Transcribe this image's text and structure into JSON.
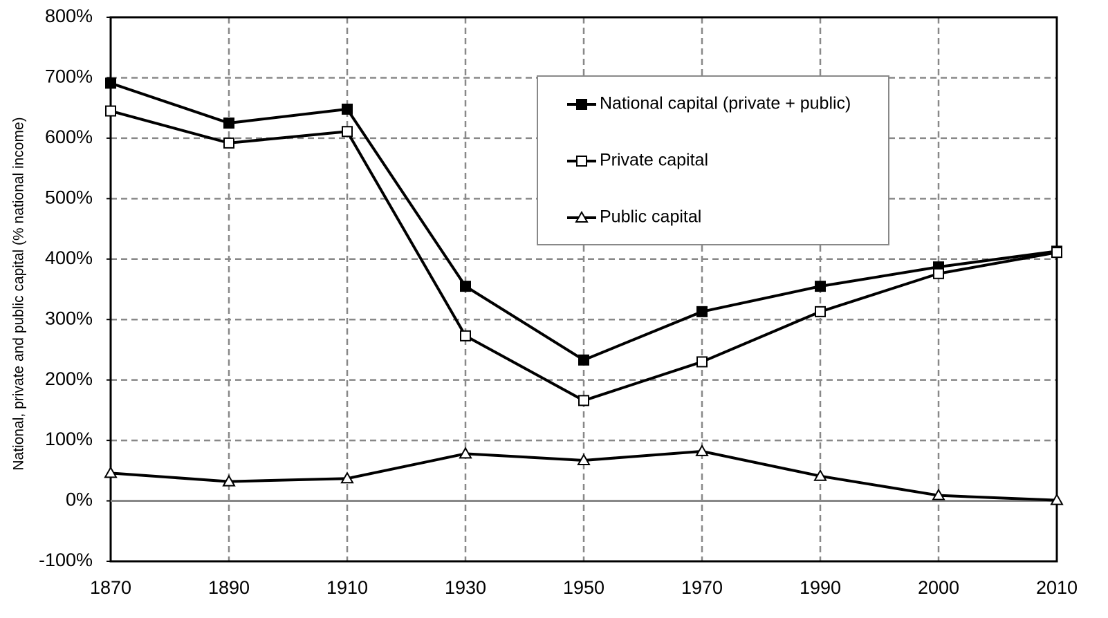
{
  "chart_data": {
    "type": "line",
    "y_axis_label": "National, private and public capital (% national income)",
    "categories": [
      "1870",
      "1890",
      "1910",
      "1930",
      "1950",
      "1970",
      "1990",
      "2000",
      "2010"
    ],
    "series": [
      {
        "name": "National capital (private + public)",
        "color": "#000000",
        "marker": "filled-square",
        "values": [
          691,
          625,
          648,
          355,
          233,
          313,
          355,
          387,
          413
        ]
      },
      {
        "name": "Private capital",
        "color": "#000000",
        "marker": "open-square",
        "values": [
          645,
          592,
          611,
          273,
          166,
          230,
          313,
          376,
          411
        ]
      },
      {
        "name": "Public capital",
        "color": "#000000",
        "marker": "open-triangle",
        "values": [
          46,
          32,
          37,
          78,
          67,
          82,
          41,
          9,
          1
        ]
      }
    ],
    "ylim": [
      -100,
      800
    ],
    "yticks": [
      {
        "value": -100,
        "label": "-100%"
      },
      {
        "value": 0,
        "label": "0%"
      },
      {
        "value": 100,
        "label": "100%"
      },
      {
        "value": 200,
        "label": "200%"
      },
      {
        "value": 300,
        "label": "300%"
      },
      {
        "value": 400,
        "label": "400%"
      },
      {
        "value": 500,
        "label": "500%"
      },
      {
        "value": 600,
        "label": "600%"
      },
      {
        "value": 700,
        "label": "700%"
      },
      {
        "value": 800,
        "label": "800%"
      }
    ],
    "grid": true,
    "legend": "top-right"
  }
}
